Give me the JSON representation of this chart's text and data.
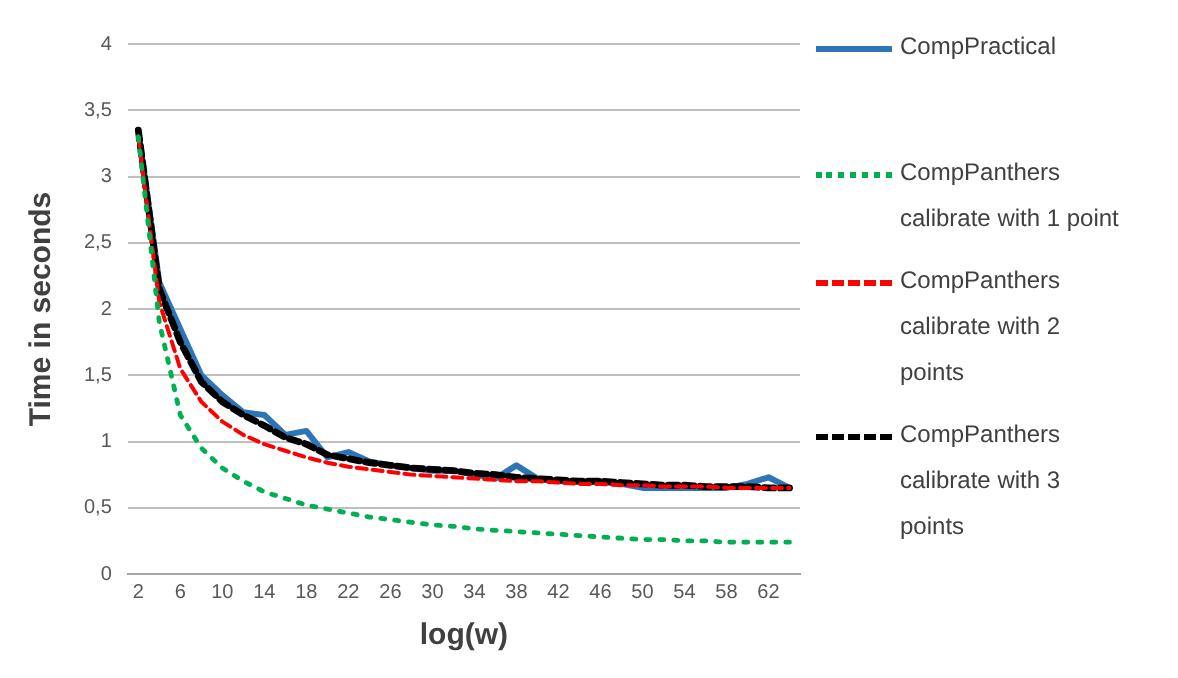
{
  "chart_data": {
    "type": "line",
    "xlabel": "log(w)",
    "ylabel": "Time in seconds",
    "x": [
      2,
      4,
      6,
      8,
      10,
      12,
      14,
      16,
      18,
      20,
      22,
      24,
      26,
      28,
      30,
      32,
      34,
      36,
      38,
      40,
      42,
      44,
      46,
      48,
      50,
      52,
      54,
      56,
      58,
      60,
      62,
      64
    ],
    "xlim": [
      1,
      65
    ],
    "xticks": [
      2,
      6,
      10,
      14,
      18,
      22,
      26,
      30,
      34,
      38,
      42,
      46,
      50,
      54,
      58,
      62
    ],
    "series": [
      {
        "name": "CompPractical",
        "color": "#2e75b6",
        "line_style": "solid",
        "values": [
          3.35,
          2.2,
          1.85,
          1.5,
          1.35,
          1.22,
          1.2,
          1.05,
          1.08,
          0.88,
          0.92,
          0.85,
          0.82,
          0.8,
          0.78,
          0.78,
          0.75,
          0.72,
          0.82,
          0.72,
          0.7,
          0.7,
          0.7,
          0.68,
          0.65,
          0.65,
          0.65,
          0.65,
          0.65,
          0.68,
          0.73,
          0.65
        ]
      },
      {
        "name": "CompPanthers calibrate with 1 point",
        "color": "#00b050",
        "line_style": "dotted",
        "values": [
          3.3,
          1.9,
          1.2,
          0.95,
          0.8,
          0.7,
          0.62,
          0.57,
          0.52,
          0.49,
          0.46,
          0.43,
          0.41,
          0.39,
          0.37,
          0.36,
          0.34,
          0.33,
          0.32,
          0.31,
          0.3,
          0.29,
          0.28,
          0.27,
          0.26,
          0.26,
          0.25,
          0.25,
          0.24,
          0.24,
          0.24,
          0.24
        ]
      },
      {
        "name": "CompPanthers calibrate with 2 points",
        "color": "#ff0000",
        "line_style": "dashed",
        "values": [
          3.3,
          2.05,
          1.55,
          1.3,
          1.15,
          1.05,
          0.98,
          0.93,
          0.88,
          0.84,
          0.81,
          0.79,
          0.77,
          0.75,
          0.74,
          0.73,
          0.72,
          0.71,
          0.7,
          0.7,
          0.69,
          0.68,
          0.68,
          0.67,
          0.67,
          0.66,
          0.66,
          0.66,
          0.65,
          0.65,
          0.65,
          0.65
        ]
      },
      {
        "name": "CompPanthers calibrate with 3 points",
        "color": "#000000",
        "line_style": "dashed",
        "values": [
          3.35,
          2.15,
          1.75,
          1.45,
          1.3,
          1.2,
          1.12,
          1.03,
          0.98,
          0.9,
          0.87,
          0.84,
          0.82,
          0.8,
          0.79,
          0.78,
          0.76,
          0.75,
          0.73,
          0.72,
          0.71,
          0.7,
          0.7,
          0.69,
          0.68,
          0.67,
          0.67,
          0.66,
          0.66,
          0.66,
          0.65,
          0.65
        ]
      }
    ],
    "ylim": [
      0,
      4
    ],
    "yticks": [
      0,
      {
        "value": 0.5,
        "label": "0,5"
      },
      1,
      {
        "value": 1.5,
        "label": "1,5"
      },
      2,
      {
        "value": 2.5,
        "label": "2,5"
      },
      3,
      {
        "value": 3.5,
        "label": "3,5"
      },
      4
    ],
    "grid": "y",
    "legend": "right",
    "marker": "none"
  }
}
